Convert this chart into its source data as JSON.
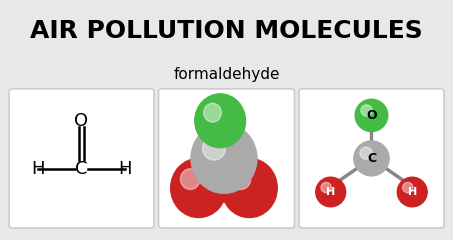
{
  "title": "AIR POLLUTION MOLECULES",
  "subtitle": "formaldehyde",
  "bg_color": "#e8e8e8",
  "panel_bg": "#ffffff",
  "title_fontsize": 18,
  "subtitle_fontsize": 11,
  "panel_border_color": "#cccccc",
  "atom_colors": {
    "C": "#aaaaaa",
    "H": "#cc2222",
    "O": "#44aa44",
    "O_red": "#cc2222"
  }
}
